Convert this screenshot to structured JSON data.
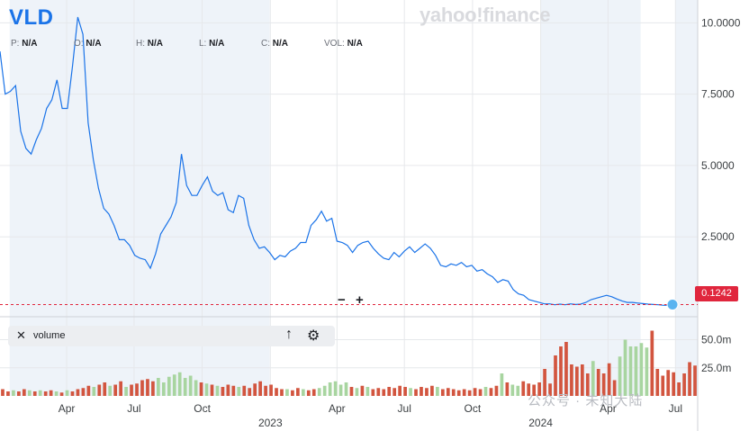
{
  "header": {
    "ticker": "VLD",
    "brand": "yahoo!finance",
    "ohlc": [
      {
        "key": "P:",
        "value": "N/A"
      },
      {
        "key": "O:",
        "value": "N/A"
      },
      {
        "key": "H:",
        "value": "N/A"
      },
      {
        "key": "L:",
        "value": "N/A"
      },
      {
        "key": "C:",
        "value": "N/A"
      },
      {
        "key": "VOL:",
        "value": "N/A"
      }
    ]
  },
  "volume_panel": {
    "close_glyph": "✕",
    "label": "volume",
    "up_glyph": "↑",
    "settings_glyph": "⚙"
  },
  "zoom": {
    "minus": "−",
    "plus": "+"
  },
  "current_price_label": "0.1242",
  "watermark_text": "公众号 · 未知大陆",
  "colors": {
    "line": "#1a73e8",
    "volume_up": "#a8d5a0",
    "volume_down": "#d2553f",
    "price_marker": "#e0263d",
    "shade": "#eef3f9"
  },
  "chart_data": {
    "type": "line",
    "y_axis": {
      "ticks": [
        "10.0000",
        "7.5000",
        "5.0000",
        "2.5000"
      ],
      "values": [
        10,
        7.5,
        5,
        2.5
      ],
      "range": [
        -0.3,
        10.8
      ]
    },
    "volume_axis": {
      "ticks": [
        "50.0m",
        "25.0m"
      ],
      "values": [
        50,
        25
      ],
      "range": [
        0,
        64
      ]
    },
    "x_ticks": [
      {
        "label": "Apr",
        "date": "2022-04-01"
      },
      {
        "label": "Jul",
        "date": "2022-07-01"
      },
      {
        "label": "Oct",
        "date": "2022-10-01"
      },
      {
        "label": "2023",
        "date": "2023-01-01"
      },
      {
        "label": "Apr",
        "date": "2023-04-01"
      },
      {
        "label": "Jul",
        "date": "2023-07-01"
      },
      {
        "label": "Oct",
        "date": "2023-10-01"
      },
      {
        "label": "2024",
        "date": "2024-01-01"
      },
      {
        "label": "Apr",
        "date": "2024-04-01"
      },
      {
        "label": "Jul",
        "date": "2024-07-01"
      }
    ],
    "x_range": [
      "2022-01-01",
      "2024-07-31"
    ],
    "shaded_ranges": [
      [
        "2022-01-14",
        "2022-12-31"
      ],
      [
        "2024-01-01",
        "2024-05-15"
      ],
      [
        "2024-07-01",
        "2024-07-31"
      ]
    ],
    "price_series": {
      "name": "VLD",
      "points": [
        [
          "2022-01-01",
          9.0
        ],
        [
          "2022-01-08",
          7.5
        ],
        [
          "2022-01-15",
          7.6
        ],
        [
          "2022-01-22",
          7.8
        ],
        [
          "2022-01-29",
          6.2
        ],
        [
          "2022-02-05",
          5.6
        ],
        [
          "2022-02-12",
          5.4
        ],
        [
          "2022-02-19",
          5.9
        ],
        [
          "2022-02-26",
          6.3
        ],
        [
          "2022-03-05",
          7.0
        ],
        [
          "2022-03-12",
          7.3
        ],
        [
          "2022-03-19",
          8.0
        ],
        [
          "2022-03-26",
          7.0
        ],
        [
          "2022-04-02",
          7.0
        ],
        [
          "2022-04-09",
          8.5
        ],
        [
          "2022-04-16",
          10.2
        ],
        [
          "2022-04-23",
          9.6
        ],
        [
          "2022-04-30",
          6.5
        ],
        [
          "2022-05-07",
          5.2
        ],
        [
          "2022-05-14",
          4.2
        ],
        [
          "2022-05-21",
          3.5
        ],
        [
          "2022-05-28",
          3.3
        ],
        [
          "2022-06-04",
          2.9
        ],
        [
          "2022-06-11",
          2.4
        ],
        [
          "2022-06-18",
          2.4
        ],
        [
          "2022-06-25",
          2.2
        ],
        [
          "2022-07-02",
          1.85
        ],
        [
          "2022-07-09",
          1.75
        ],
        [
          "2022-07-16",
          1.7
        ],
        [
          "2022-07-23",
          1.4
        ],
        [
          "2022-07-30",
          1.9
        ],
        [
          "2022-08-06",
          2.6
        ],
        [
          "2022-08-13",
          2.9
        ],
        [
          "2022-08-20",
          3.2
        ],
        [
          "2022-08-27",
          3.7
        ],
        [
          "2022-09-03",
          5.4
        ],
        [
          "2022-09-10",
          4.3
        ],
        [
          "2022-09-17",
          3.95
        ],
        [
          "2022-09-24",
          3.95
        ],
        [
          "2022-10-01",
          4.3
        ],
        [
          "2022-10-08",
          4.6
        ],
        [
          "2022-10-15",
          4.1
        ],
        [
          "2022-10-22",
          3.95
        ],
        [
          "2022-10-29",
          4.05
        ],
        [
          "2022-11-05",
          3.45
        ],
        [
          "2022-11-12",
          3.35
        ],
        [
          "2022-11-19",
          3.95
        ],
        [
          "2022-11-26",
          3.85
        ],
        [
          "2022-12-03",
          2.9
        ],
        [
          "2022-12-10",
          2.4
        ],
        [
          "2022-12-17",
          2.1
        ],
        [
          "2022-12-24",
          2.15
        ],
        [
          "2022-12-31",
          1.95
        ],
        [
          "2023-01-07",
          1.7
        ],
        [
          "2023-01-14",
          1.85
        ],
        [
          "2023-01-21",
          1.8
        ],
        [
          "2023-01-28",
          2.0
        ],
        [
          "2023-02-04",
          2.1
        ],
        [
          "2023-02-11",
          2.3
        ],
        [
          "2023-02-18",
          2.3
        ],
        [
          "2023-02-25",
          2.9
        ],
        [
          "2023-03-04",
          3.1
        ],
        [
          "2023-03-11",
          3.4
        ],
        [
          "2023-03-18",
          3.05
        ],
        [
          "2023-03-25",
          3.15
        ],
        [
          "2023-04-01",
          2.35
        ],
        [
          "2023-04-08",
          2.3
        ],
        [
          "2023-04-15",
          2.2
        ],
        [
          "2023-04-22",
          1.95
        ],
        [
          "2023-04-29",
          2.2
        ],
        [
          "2023-05-06",
          2.3
        ],
        [
          "2023-05-13",
          2.35
        ],
        [
          "2023-05-20",
          2.1
        ],
        [
          "2023-05-27",
          1.9
        ],
        [
          "2023-06-03",
          1.75
        ],
        [
          "2023-06-10",
          1.7
        ],
        [
          "2023-06-17",
          1.95
        ],
        [
          "2023-06-24",
          1.8
        ],
        [
          "2023-07-01",
          2.0
        ],
        [
          "2023-07-08",
          2.15
        ],
        [
          "2023-07-15",
          1.95
        ],
        [
          "2023-07-22",
          2.1
        ],
        [
          "2023-07-29",
          2.25
        ],
        [
          "2023-08-05",
          2.1
        ],
        [
          "2023-08-12",
          1.85
        ],
        [
          "2023-08-19",
          1.5
        ],
        [
          "2023-08-26",
          1.45
        ],
        [
          "2023-09-02",
          1.55
        ],
        [
          "2023-09-09",
          1.5
        ],
        [
          "2023-09-16",
          1.6
        ],
        [
          "2023-09-23",
          1.45
        ],
        [
          "2023-09-30",
          1.5
        ],
        [
          "2023-10-07",
          1.3
        ],
        [
          "2023-10-14",
          1.35
        ],
        [
          "2023-10-21",
          1.2
        ],
        [
          "2023-10-28",
          1.1
        ],
        [
          "2023-11-04",
          0.9
        ],
        [
          "2023-11-11",
          1.0
        ],
        [
          "2023-11-18",
          0.95
        ],
        [
          "2023-11-25",
          0.65
        ],
        [
          "2023-12-02",
          0.5
        ],
        [
          "2023-12-09",
          0.45
        ],
        [
          "2023-12-16",
          0.3
        ],
        [
          "2023-12-23",
          0.25
        ],
        [
          "2023-12-30",
          0.2
        ],
        [
          "2024-01-06",
          0.15
        ],
        [
          "2024-01-13",
          0.15
        ],
        [
          "2024-01-20",
          0.12
        ],
        [
          "2024-01-27",
          0.14
        ],
        [
          "2024-02-03",
          0.12
        ],
        [
          "2024-02-10",
          0.15
        ],
        [
          "2024-02-17",
          0.13
        ],
        [
          "2024-02-24",
          0.14
        ],
        [
          "2024-03-02",
          0.2
        ],
        [
          "2024-03-09",
          0.3
        ],
        [
          "2024-03-16",
          0.35
        ],
        [
          "2024-03-23",
          0.4
        ],
        [
          "2024-03-30",
          0.45
        ],
        [
          "2024-04-06",
          0.4
        ],
        [
          "2024-04-13",
          0.32
        ],
        [
          "2024-04-20",
          0.25
        ],
        [
          "2024-04-27",
          0.2
        ],
        [
          "2024-05-04",
          0.2
        ],
        [
          "2024-05-11",
          0.18
        ],
        [
          "2024-05-18",
          0.16
        ],
        [
          "2024-05-25",
          0.14
        ],
        [
          "2024-06-01",
          0.13
        ],
        [
          "2024-06-08",
          0.12
        ],
        [
          "2024-06-15",
          0.1
        ],
        [
          "2024-06-22",
          0.1
        ],
        [
          "2024-06-27",
          0.1242
        ]
      ]
    },
    "volume_series": {
      "name": "volume",
      "bars": [
        [
          6,
          "d"
        ],
        [
          4,
          "d"
        ],
        [
          5,
          "u"
        ],
        [
          4,
          "d"
        ],
        [
          6,
          "d"
        ],
        [
          5,
          "u"
        ],
        [
          4,
          "d"
        ],
        [
          5,
          "u"
        ],
        [
          4,
          "d"
        ],
        [
          5,
          "d"
        ],
        [
          4,
          "u"
        ],
        [
          3,
          "d"
        ],
        [
          5,
          "u"
        ],
        [
          4,
          "d"
        ],
        [
          6,
          "d"
        ],
        [
          7,
          "d"
        ],
        [
          9,
          "d"
        ],
        [
          8,
          "u"
        ],
        [
          10,
          "d"
        ],
        [
          12,
          "d"
        ],
        [
          9,
          "u"
        ],
        [
          10,
          "d"
        ],
        [
          13,
          "d"
        ],
        [
          8,
          "u"
        ],
        [
          10,
          "d"
        ],
        [
          11,
          "d"
        ],
        [
          14,
          "d"
        ],
        [
          15,
          "d"
        ],
        [
          13,
          "d"
        ],
        [
          16,
          "u"
        ],
        [
          12,
          "u"
        ],
        [
          17,
          "u"
        ],
        [
          19,
          "u"
        ],
        [
          21,
          "u"
        ],
        [
          16,
          "u"
        ],
        [
          18,
          "u"
        ],
        [
          14,
          "u"
        ],
        [
          12,
          "d"
        ],
        [
          11,
          "u"
        ],
        [
          10,
          "d"
        ],
        [
          9,
          "u"
        ],
        [
          8,
          "d"
        ],
        [
          10,
          "d"
        ],
        [
          9,
          "d"
        ],
        [
          8,
          "u"
        ],
        [
          9,
          "d"
        ],
        [
          7,
          "d"
        ],
        [
          11,
          "d"
        ],
        [
          13,
          "d"
        ],
        [
          9,
          "d"
        ],
        [
          10,
          "d"
        ],
        [
          7,
          "d"
        ],
        [
          6,
          "d"
        ],
        [
          6,
          "u"
        ],
        [
          5,
          "d"
        ],
        [
          7,
          "d"
        ],
        [
          6,
          "u"
        ],
        [
          5,
          "d"
        ],
        [
          6,
          "d"
        ],
        [
          7,
          "u"
        ],
        [
          9,
          "u"
        ],
        [
          12,
          "u"
        ],
        [
          13,
          "u"
        ],
        [
          10,
          "u"
        ],
        [
          12,
          "u"
        ],
        [
          8,
          "d"
        ],
        [
          7,
          "u"
        ],
        [
          9,
          "d"
        ],
        [
          8,
          "u"
        ],
        [
          6,
          "d"
        ],
        [
          7,
          "d"
        ],
        [
          6,
          "d"
        ],
        [
          8,
          "d"
        ],
        [
          7,
          "d"
        ],
        [
          9,
          "d"
        ],
        [
          8,
          "d"
        ],
        [
          7,
          "u"
        ],
        [
          6,
          "d"
        ],
        [
          8,
          "d"
        ],
        [
          7,
          "d"
        ],
        [
          9,
          "d"
        ],
        [
          8,
          "u"
        ],
        [
          6,
          "d"
        ],
        [
          7,
          "d"
        ],
        [
          6,
          "d"
        ],
        [
          5,
          "d"
        ],
        [
          6,
          "d"
        ],
        [
          5,
          "d"
        ],
        [
          7,
          "d"
        ],
        [
          6,
          "d"
        ],
        [
          8,
          "u"
        ],
        [
          7,
          "d"
        ],
        [
          9,
          "d"
        ],
        [
          20,
          "u"
        ],
        [
          12,
          "d"
        ],
        [
          10,
          "u"
        ],
        [
          9,
          "u"
        ],
        [
          13,
          "d"
        ],
        [
          11,
          "d"
        ],
        [
          10,
          "d"
        ],
        [
          12,
          "d"
        ],
        [
          24,
          "d"
        ],
        [
          11,
          "d"
        ],
        [
          36,
          "d"
        ],
        [
          44,
          "d"
        ],
        [
          48,
          "d"
        ],
        [
          28,
          "d"
        ],
        [
          26,
          "d"
        ],
        [
          28,
          "d"
        ],
        [
          20,
          "d"
        ],
        [
          31,
          "u"
        ],
        [
          24,
          "d"
        ],
        [
          20,
          "d"
        ],
        [
          29,
          "d"
        ],
        [
          14,
          "d"
        ],
        [
          35,
          "u"
        ],
        [
          50,
          "u"
        ],
        [
          44,
          "u"
        ],
        [
          44,
          "u"
        ],
        [
          47,
          "u"
        ],
        [
          43,
          "u"
        ],
        [
          58,
          "d"
        ],
        [
          24,
          "d"
        ],
        [
          18,
          "d"
        ],
        [
          23,
          "d"
        ],
        [
          21,
          "d"
        ],
        [
          12,
          "d"
        ],
        [
          20,
          "d"
        ],
        [
          30,
          "d"
        ],
        [
          27,
          "d"
        ]
      ]
    }
  }
}
